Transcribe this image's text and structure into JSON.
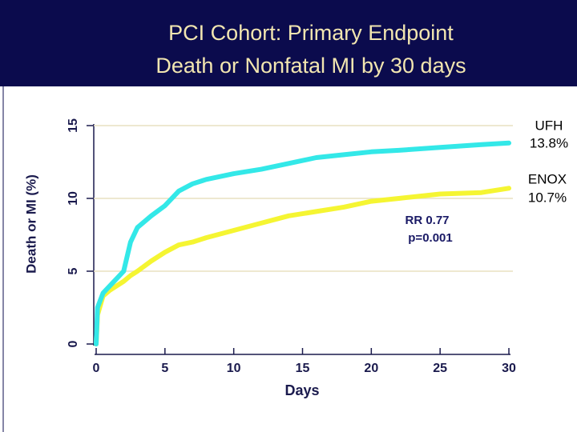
{
  "chart_data": {
    "type": "line",
    "title": [
      "PCI Cohort: Primary Endpoint",
      "Death or Nonfatal MI by 30 days"
    ],
    "xlabel": "Days",
    "ylabel": "Death or MI (%)",
    "x": [
      0,
      0.1,
      0.5,
      1,
      2,
      2.5,
      3,
      4,
      5,
      6,
      7,
      8,
      10,
      12,
      14,
      16,
      18,
      20,
      22,
      25,
      28,
      30
    ],
    "series": [
      {
        "name": "UFH",
        "color": "#33e8e8",
        "values": [
          0,
          2.5,
          3.5,
          4,
          5,
          7,
          8,
          8.8,
          9.5,
          10.5,
          11,
          11.3,
          11.7,
          12,
          12.4,
          12.8,
          13,
          13.2,
          13.3,
          13.5,
          13.7,
          13.8
        ]
      },
      {
        "name": "ENOX",
        "color": "#f5f532",
        "values": [
          0,
          2,
          3.3,
          3.7,
          4.3,
          4.7,
          5,
          5.7,
          6.3,
          6.8,
          7,
          7.3,
          7.8,
          8.3,
          8.8,
          9.1,
          9.4,
          9.8,
          10,
          10.3,
          10.4,
          10.7
        ]
      }
    ],
    "annotations": [
      "UFH",
      "13.8%",
      "ENOX",
      "10.7%",
      "RR 0.77",
      "p=0.001"
    ],
    "xlim": [
      0,
      30
    ],
    "xticks": [
      0,
      5,
      10,
      15,
      20,
      25,
      30
    ],
    "ylim": [
      0,
      15
    ],
    "yticks": [
      0,
      5,
      10,
      15
    ],
    "grid": true
  }
}
